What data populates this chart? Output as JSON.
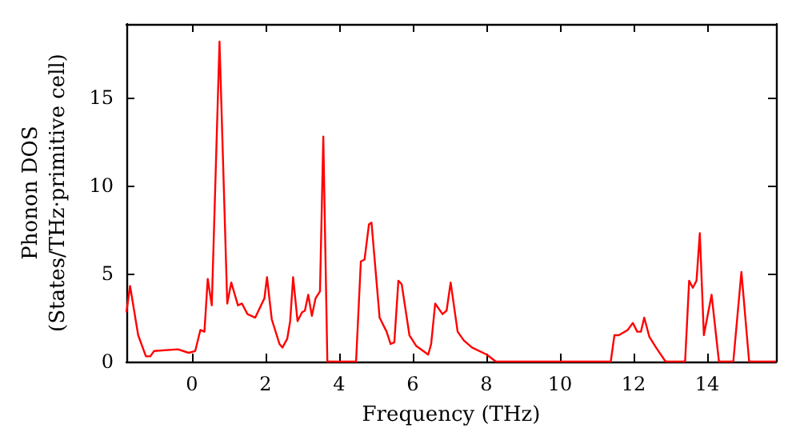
{
  "chart_data": {
    "type": "line",
    "xlabel": "Frequency (THz)",
    "ylabel": "Phonon DOS\n(States/THz·primitive cell)",
    "xlim": [
      -1.78,
      15.87
    ],
    "ylim": [
      0,
      19.2
    ],
    "xticks": [
      0,
      2,
      4,
      6,
      8,
      10,
      12,
      14
    ],
    "yticks": [
      0,
      5,
      10,
      15
    ],
    "grid": false,
    "marker": "none",
    "line_style": "solid",
    "series": [
      {
        "color": "#ff0000",
        "x": [
          -1.78,
          -1.68,
          -1.46,
          -1.25,
          -1.13,
          -1.03,
          -0.38,
          -0.09,
          0.09,
          0.23,
          0.34,
          0.43,
          0.54,
          0.75,
          0.96,
          1.07,
          1.25,
          1.36,
          1.51,
          1.72,
          1.97,
          2.04,
          2.17,
          2.38,
          2.46,
          2.59,
          2.67,
          2.75,
          2.87,
          2.99,
          3.07,
          3.16,
          3.26,
          3.36,
          3.48,
          3.57,
          3.68,
          4.46,
          4.59,
          4.69,
          4.81,
          4.88,
          5.1,
          5.29,
          5.4,
          5.5,
          5.61,
          5.7,
          5.91,
          6.09,
          6.42,
          6.5,
          6.61,
          6.81,
          6.92,
          7.03,
          7.22,
          7.39,
          7.61,
          8.01,
          8.26,
          11.38,
          11.48,
          11.6,
          11.84,
          11.98,
          12.1,
          12.2,
          12.29,
          12.43,
          12.61,
          12.87,
          13.4,
          13.51,
          13.61,
          13.71,
          13.8,
          13.91,
          14.12,
          14.32,
          14.71,
          14.93,
          15.14,
          15.87
        ],
        "values": [
          2.8,
          4.3,
          1.5,
          0.3,
          0.3,
          0.6,
          0.7,
          0.5,
          0.6,
          1.8,
          1.7,
          4.7,
          3.2,
          18.2,
          3.3,
          4.5,
          3.2,
          3.3,
          2.7,
          2.5,
          3.6,
          4.8,
          2.4,
          1.0,
          0.8,
          1.3,
          2.3,
          4.8,
          2.3,
          2.8,
          2.9,
          3.8,
          2.6,
          3.6,
          4.0,
          12.8,
          0,
          0,
          5.7,
          5.8,
          7.8,
          7.9,
          2.5,
          1.7,
          1.0,
          1.1,
          4.6,
          4.4,
          1.5,
          0.9,
          0.4,
          1.0,
          3.3,
          2.7,
          2.9,
          4.5,
          1.7,
          1.2,
          0.8,
          0.4,
          0,
          0,
          1.5,
          1.5,
          1.8,
          2.2,
          1.7,
          1.7,
          2.5,
          1.4,
          0.8,
          0,
          0,
          4.6,
          4.2,
          4.6,
          7.3,
          1.5,
          3.8,
          0,
          0,
          5.1,
          0,
          0
        ]
      }
    ]
  }
}
